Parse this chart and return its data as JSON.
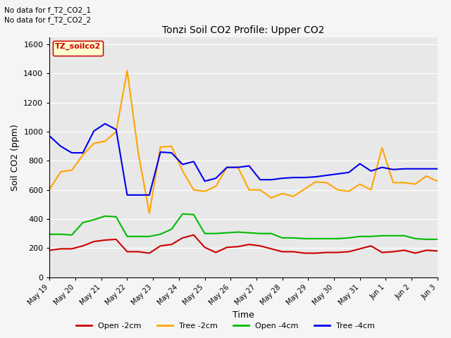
{
  "title": "Tonzi Soil CO2 Profile: Upper CO2",
  "xlabel": "Time",
  "ylabel": "Soil CO2 (ppm)",
  "annotations": [
    "No data for f_T2_CO2_1",
    "No data for f_T2_CO2_2"
  ],
  "legend_label_box": "TZ_soilco2",
  "ylim": [
    0,
    1650
  ],
  "yticks": [
    0,
    200,
    400,
    600,
    800,
    1000,
    1200,
    1400,
    1600
  ],
  "bg_color": "#e8e8e8",
  "fig_bg_color": "#f5f5f5",
  "series": {
    "open_2cm": {
      "label": "Open -2cm",
      "color": "#cc0000",
      "x": [
        0,
        1,
        2,
        3,
        4,
        5,
        6,
        7,
        8,
        9,
        10,
        11,
        12,
        13,
        14,
        15,
        16,
        17,
        18,
        19,
        20,
        21,
        22,
        23,
        24,
        25,
        26,
        27,
        28,
        29,
        30,
        31,
        32,
        33,
        34,
        35
      ],
      "y": [
        185,
        195,
        195,
        215,
        245,
        255,
        260,
        175,
        175,
        165,
        215,
        225,
        270,
        290,
        205,
        170,
        205,
        210,
        225,
        215,
        195,
        175,
        175,
        165,
        165,
        170,
        170,
        175,
        195,
        215,
        170,
        175,
        185,
        165,
        185,
        180
      ]
    },
    "tree_2cm": {
      "label": "Tree -2cm",
      "color": "#ffa500",
      "x": [
        0,
        1,
        2,
        3,
        4,
        5,
        6,
        7,
        8,
        9,
        10,
        11,
        12,
        13,
        14,
        15,
        16,
        17,
        18,
        19,
        20,
        21,
        22,
        23,
        24,
        25,
        26,
        27,
        28,
        29,
        30,
        31,
        32,
        33,
        34,
        35
      ],
      "y": [
        605,
        725,
        735,
        840,
        920,
        935,
        1000,
        1420,
        855,
        440,
        895,
        900,
        730,
        600,
        590,
        625,
        755,
        755,
        600,
        600,
        545,
        575,
        555,
        605,
        655,
        650,
        600,
        590,
        640,
        600,
        890,
        650,
        650,
        640,
        695,
        660
      ]
    },
    "open_4cm": {
      "label": "Open -4cm",
      "color": "#00bb00",
      "x": [
        0,
        1,
        2,
        3,
        4,
        5,
        6,
        7,
        8,
        9,
        10,
        11,
        12,
        13,
        14,
        15,
        16,
        17,
        18,
        19,
        20,
        21,
        22,
        23,
        24,
        25,
        26,
        27,
        28,
        29,
        30,
        31,
        32,
        33,
        34,
        35
      ],
      "y": [
        295,
        295,
        290,
        375,
        395,
        420,
        415,
        280,
        280,
        280,
        295,
        330,
        435,
        430,
        300,
        300,
        305,
        310,
        305,
        300,
        300,
        270,
        270,
        265,
        265,
        265,
        265,
        270,
        280,
        280,
        285,
        285,
        285,
        265,
        260,
        260
      ]
    },
    "tree_4cm": {
      "label": "Tree -4cm",
      "color": "#0000ee",
      "x": [
        0,
        1,
        2,
        3,
        4,
        5,
        6,
        7,
        8,
        9,
        10,
        11,
        12,
        13,
        14,
        15,
        16,
        17,
        18,
        19,
        20,
        21,
        22,
        23,
        24,
        25,
        26,
        27,
        28,
        29,
        30,
        31,
        32,
        33,
        34,
        35
      ],
      "y": [
        970,
        900,
        855,
        855,
        1005,
        1055,
        1015,
        565,
        565,
        565,
        860,
        855,
        775,
        795,
        660,
        680,
        755,
        755,
        765,
        670,
        670,
        680,
        685,
        685,
        690,
        700,
        710,
        720,
        780,
        730,
        755,
        740,
        745,
        745,
        745,
        745
      ]
    }
  },
  "xtick_labels": [
    "May 19",
    "May 20",
    "May 21",
    "May 22",
    "May 23",
    "May 24",
    "May 25",
    "May 26",
    "May 27",
    "May 28",
    "May 29",
    "May 30",
    "May 31",
    "Jun 1",
    "Jun 2",
    "Jun 3"
  ],
  "xtick_positions": [
    0,
    2.333,
    4.667,
    7.0,
    9.333,
    11.667,
    14.0,
    16.333,
    18.667,
    21.0,
    23.333,
    25.667,
    28.0,
    30.333,
    32.667,
    35.0
  ]
}
